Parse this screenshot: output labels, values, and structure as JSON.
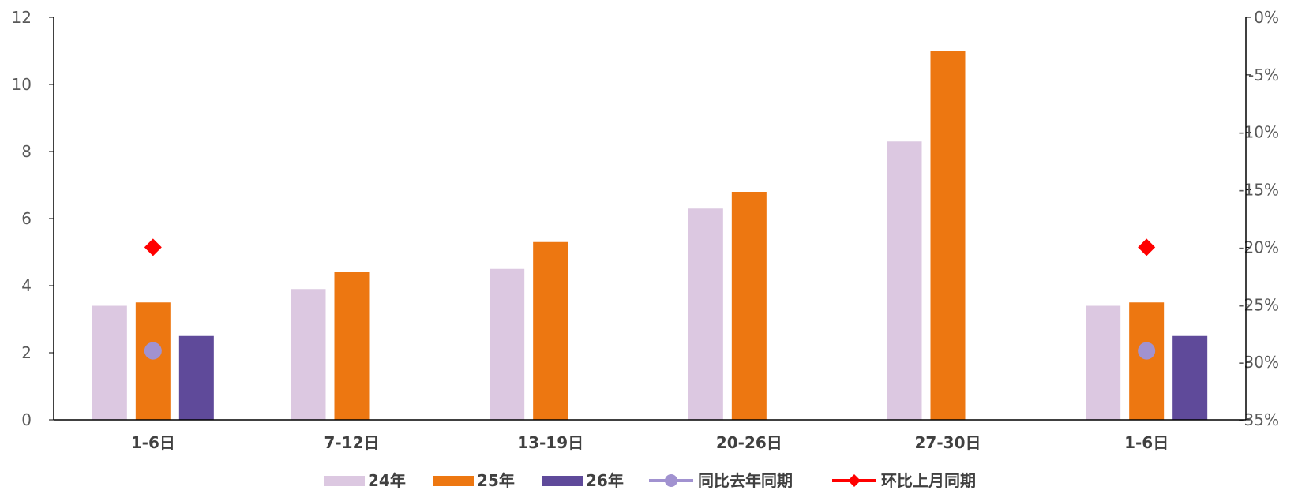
{
  "chart_data": {
    "type": "bar",
    "categories": [
      "1-6日",
      "7-12日",
      "13-19日",
      "20-26日",
      "27-30日",
      "1-6日"
    ],
    "series": [
      {
        "name": "24年",
        "kind": "bar",
        "axis": "left",
        "color": "#DCC8E1",
        "values": [
          3.4,
          3.9,
          4.5,
          6.3,
          8.3,
          3.4
        ]
      },
      {
        "name": "25年",
        "kind": "bar",
        "axis": "left",
        "color": "#ED7711",
        "values": [
          3.5,
          4.4,
          5.3,
          6.8,
          11.0,
          3.5
        ]
      },
      {
        "name": "26年",
        "kind": "bar",
        "axis": "left",
        "color": "#5F4A9A",
        "values": [
          2.5,
          null,
          null,
          null,
          null,
          2.5
        ]
      },
      {
        "name": "同比去年同期",
        "kind": "marker",
        "marker": "circle",
        "axis": "right",
        "color": "#A192D0",
        "values": [
          -29,
          null,
          null,
          null,
          null,
          -29
        ]
      },
      {
        "name": "环比上月同期",
        "kind": "marker",
        "marker": "diamond",
        "axis": "right",
        "color": "#FF0000",
        "values": [
          -20,
          null,
          null,
          null,
          null,
          -20
        ]
      }
    ],
    "y_left": {
      "min": 0,
      "max": 12,
      "ticks": [
        0,
        2,
        4,
        6,
        8,
        10,
        12
      ]
    },
    "y_right": {
      "min": -35,
      "max": 0,
      "ticks": [
        -35,
        -30,
        -25,
        -20,
        -15,
        -10,
        -5,
        0
      ],
      "tick_labels": [
        "-35%",
        "-30%",
        "-25%",
        "-20%",
        "-15%",
        "-10%",
        "-5%",
        "0%"
      ]
    },
    "grid": false,
    "legend_position": "bottom"
  }
}
